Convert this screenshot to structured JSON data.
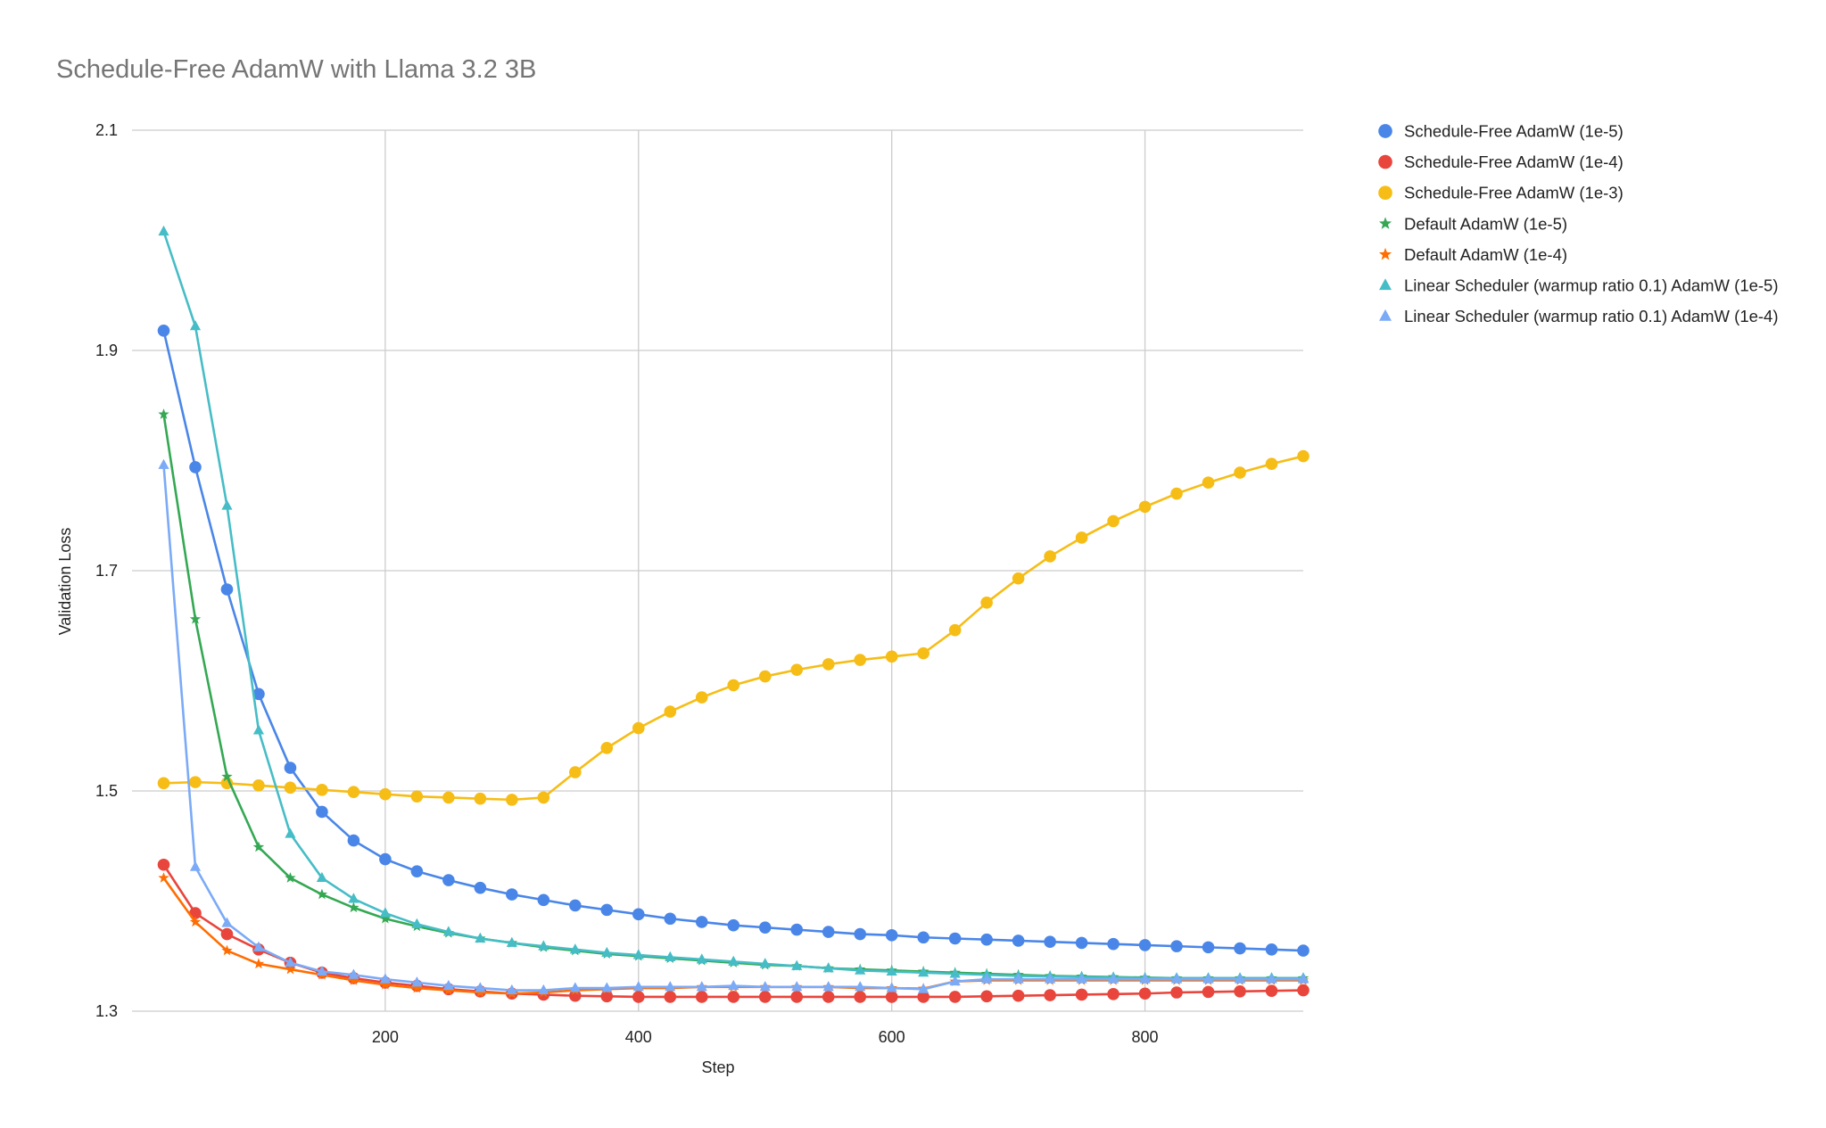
{
  "chart_data": {
    "type": "line",
    "title": "Schedule-Free AdamW with Llama 3.2 3B",
    "xlabel": "Step",
    "ylabel": "Validation Loss",
    "xlim": [
      0,
      925
    ],
    "ylim": [
      1.3,
      2.1
    ],
    "xticks": [
      200,
      400,
      600,
      800
    ],
    "yticks": [
      1.3,
      1.5,
      1.7,
      1.9,
      2.1
    ],
    "ytick_labels": [
      "1.3",
      "1.5",
      "1.7",
      "1.9",
      "2.1"
    ],
    "grid": true,
    "legend_position": "right",
    "x": [
      25,
      50,
      75,
      100,
      125,
      150,
      175,
      200,
      225,
      250,
      275,
      300,
      325,
      350,
      375,
      400,
      425,
      450,
      475,
      500,
      525,
      550,
      575,
      600,
      625,
      650,
      675,
      700,
      725,
      750,
      775,
      800,
      825,
      850,
      875,
      900,
      925
    ],
    "series": [
      {
        "name": "Schedule-Free AdamW (1e-5)",
        "color": "#4a86e8",
        "marker": "circle",
        "values": [
          1.918,
          1.794,
          1.683,
          1.588,
          1.521,
          1.481,
          1.455,
          1.438,
          1.427,
          1.419,
          1.412,
          1.406,
          1.401,
          1.396,
          1.392,
          1.388,
          1.384,
          1.381,
          1.378,
          1.376,
          1.374,
          1.372,
          1.37,
          1.369,
          1.367,
          1.366,
          1.365,
          1.364,
          1.363,
          1.362,
          1.361,
          1.36,
          1.359,
          1.358,
          1.357,
          1.356,
          1.355
        ]
      },
      {
        "name": "Schedule-Free AdamW (1e-4)",
        "color": "#e8453c",
        "marker": "circle",
        "values": [
          1.433,
          1.389,
          1.37,
          1.356,
          1.344,
          1.335,
          1.33,
          1.326,
          1.323,
          1.32,
          1.318,
          1.316,
          1.315,
          1.314,
          1.3135,
          1.313,
          1.313,
          1.313,
          1.313,
          1.313,
          1.313,
          1.313,
          1.313,
          1.313,
          1.313,
          1.313,
          1.3135,
          1.314,
          1.3145,
          1.315,
          1.3155,
          1.316,
          1.317,
          1.3175,
          1.318,
          1.3185,
          1.319
        ]
      },
      {
        "name": "Schedule-Free AdamW (1e-3)",
        "color": "#f6bd16",
        "marker": "circle",
        "values": [
          1.507,
          1.508,
          1.507,
          1.505,
          1.503,
          1.501,
          1.499,
          1.497,
          1.495,
          1.494,
          1.493,
          1.492,
          1.494,
          1.517,
          1.539,
          1.557,
          1.572,
          1.585,
          1.596,
          1.604,
          1.61,
          1.615,
          1.619,
          1.622,
          1.625,
          1.646,
          1.671,
          1.693,
          1.713,
          1.73,
          1.745,
          1.758,
          1.77,
          1.78,
          1.789,
          1.797,
          1.804
        ]
      },
      {
        "name": "Default AdamW (1e-5)",
        "color": "#34a853",
        "marker": "star",
        "values": [
          1.842,
          1.656,
          1.513,
          1.449,
          1.421,
          1.406,
          1.394,
          1.384,
          1.377,
          1.371,
          1.366,
          1.362,
          1.358,
          1.355,
          1.352,
          1.35,
          1.348,
          1.346,
          1.344,
          1.342,
          1.341,
          1.339,
          1.338,
          1.337,
          1.336,
          1.335,
          1.334,
          1.333,
          1.332,
          1.3315,
          1.331,
          1.3305,
          1.33,
          1.33,
          1.33,
          1.33,
          1.33
        ]
      },
      {
        "name": "Default AdamW (1e-4)",
        "color": "#ff6d01",
        "marker": "star",
        "values": [
          1.421,
          1.381,
          1.355,
          1.343,
          1.338,
          1.333,
          1.328,
          1.324,
          1.321,
          1.319,
          1.317,
          1.316,
          1.317,
          1.319,
          1.32,
          1.321,
          1.321,
          1.322,
          1.322,
          1.322,
          1.322,
          1.322,
          1.321,
          1.321,
          1.3205,
          1.327,
          1.328,
          1.328,
          1.328,
          1.328,
          1.328,
          1.328,
          1.328,
          1.328,
          1.328,
          1.328,
          1.328
        ]
      },
      {
        "name": "Linear Scheduler (warmup ratio 0.1) AdamW (1e-5)",
        "color": "#46bdc6",
        "marker": "triangle",
        "values": [
          2.008,
          1.922,
          1.759,
          1.555,
          1.461,
          1.421,
          1.402,
          1.389,
          1.379,
          1.372,
          1.366,
          1.362,
          1.359,
          1.356,
          1.353,
          1.351,
          1.349,
          1.347,
          1.345,
          1.343,
          1.341,
          1.339,
          1.337,
          1.336,
          1.335,
          1.334,
          1.333,
          1.332,
          1.3315,
          1.331,
          1.3305,
          1.33,
          1.33,
          1.33,
          1.33,
          1.33,
          1.33
        ]
      },
      {
        "name": "Linear Scheduler (warmup ratio 0.1) AdamW (1e-4)",
        "color": "#7baaf7",
        "marker": "triangle",
        "values": [
          1.796,
          1.431,
          1.38,
          1.358,
          1.344,
          1.336,
          1.333,
          1.329,
          1.326,
          1.323,
          1.321,
          1.319,
          1.319,
          1.321,
          1.321,
          1.322,
          1.322,
          1.322,
          1.323,
          1.322,
          1.322,
          1.322,
          1.322,
          1.321,
          1.32,
          1.327,
          1.329,
          1.329,
          1.329,
          1.329,
          1.329,
          1.329,
          1.329,
          1.329,
          1.329,
          1.329,
          1.329
        ]
      }
    ]
  }
}
